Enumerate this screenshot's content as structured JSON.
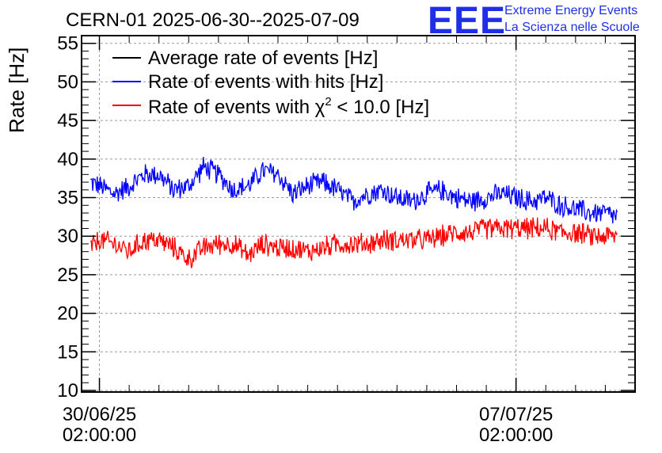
{
  "chart_data": {
    "type": "line",
    "title": "CERN-01 2025-06-30--2025-07-09",
    "xlabel": "",
    "ylabel": "Rate [Hz]",
    "ylim": [
      10,
      56
    ],
    "yticks": [
      10,
      15,
      20,
      25,
      30,
      35,
      40,
      45,
      50,
      55
    ],
    "x_unit": "days since 2025-06-30 02:00:00",
    "xlim": [
      -0.3,
      9.0
    ],
    "xticks": [
      {
        "value": 0,
        "line1": "30/06/25",
        "line2": "02:00:00"
      },
      {
        "value": 7,
        "line1": "07/07/25",
        "line2": "02:00:00"
      }
    ],
    "grid": true,
    "legend_position": "top-left",
    "series": [
      {
        "name": "Average rate of events [Hz]",
        "color": "#000000",
        "x": [],
        "values": []
      },
      {
        "name": "Rate of events with hits [Hz]",
        "color": "#0000ff",
        "x": [
          -0.15,
          0.0,
          0.25,
          0.5,
          0.75,
          1.0,
          1.25,
          1.5,
          1.75,
          2.0,
          2.25,
          2.5,
          2.75,
          3.0,
          3.25,
          3.5,
          3.75,
          4.0,
          4.25,
          4.5,
          4.75,
          5.0,
          5.25,
          5.5,
          5.75,
          6.0,
          6.25,
          6.5,
          6.75,
          7.0,
          7.25,
          7.5,
          7.75,
          8.0,
          8.25,
          8.5,
          8.7
        ],
        "values": [
          37,
          36.5,
          35.5,
          36.5,
          38,
          38,
          36,
          36.5,
          39,
          38,
          36,
          36.5,
          38.5,
          38,
          35.5,
          36.5,
          37,
          36,
          34.5,
          35.5,
          36,
          35,
          34.5,
          35.5,
          36,
          35,
          34.5,
          35,
          35.5,
          35,
          34.5,
          35,
          34,
          33.5,
          33,
          33,
          32.5
        ],
        "band": 1.6
      },
      {
        "name": "Rate of events with χ2 < 10.0 [Hz]",
        "color": "#ff0000",
        "x": [
          -0.15,
          0.0,
          0.25,
          0.5,
          0.75,
          1.0,
          1.25,
          1.5,
          1.75,
          2.0,
          2.25,
          2.5,
          2.75,
          3.0,
          3.25,
          3.5,
          3.75,
          4.0,
          4.25,
          4.5,
          4.75,
          5.0,
          5.25,
          5.5,
          5.75,
          6.0,
          6.25,
          6.5,
          6.75,
          7.0,
          7.25,
          7.5,
          7.75,
          8.0,
          8.25,
          8.5,
          8.7
        ],
        "values": [
          28.5,
          29.5,
          29,
          28,
          29.5,
          29.5,
          28.5,
          27,
          28.5,
          29,
          29,
          27.5,
          29,
          28.5,
          28.5,
          28,
          28.5,
          29,
          29,
          29,
          29.5,
          29.5,
          29.5,
          29.5,
          30,
          30.5,
          30.5,
          31,
          31,
          31,
          31,
          31,
          30.5,
          30.5,
          30,
          30,
          30
        ],
        "band": 1.6
      }
    ]
  },
  "legend": {
    "average": "Average rate of events [Hz]",
    "hits": "Rate of events with hits [Hz]",
    "chi2_prefix": "Rate of events with χ",
    "chi2_sup": "2",
    "chi2_suffix": " < 10.0 [Hz]"
  },
  "logo": {
    "mark": "EEE",
    "line1": "Extreme Energy Events",
    "line2": "La Scienza nelle Scuole",
    "color": "#1f2fe6"
  }
}
